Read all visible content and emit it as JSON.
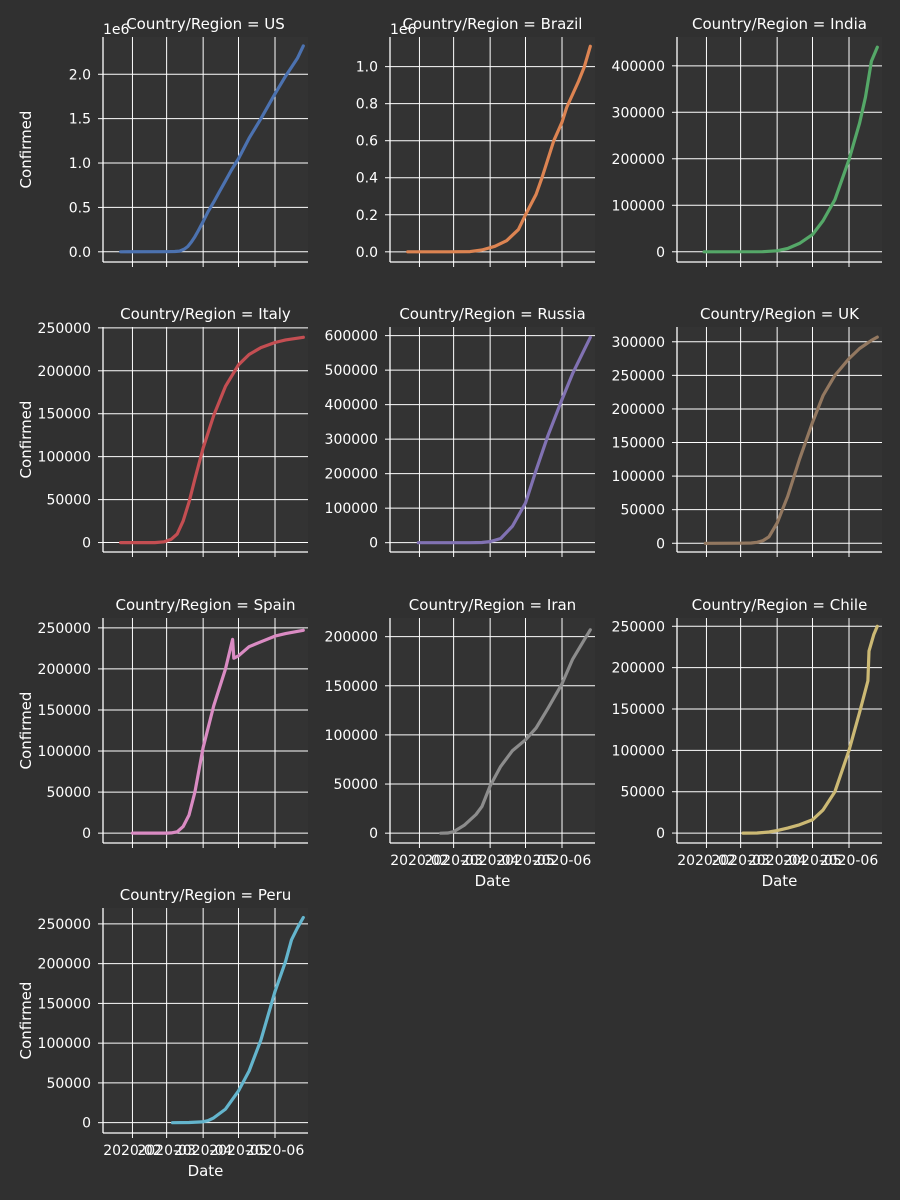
{
  "figure": {
    "background": "#303030",
    "panel_background": "#333333",
    "grid_color": "#ffffff",
    "text_color": "#ffffff",
    "col_wrap": 3
  },
  "chart_data": [
    {
      "type": "line",
      "title": "Country/Region = US",
      "xlabel": "",
      "ylabel": "Confirmed",
      "color": "#4c72b0",
      "xlim": [
        "2020-01-07",
        "2020-06-29"
      ],
      "ylim": [
        -115000,
        2420000
      ],
      "grid": true,
      "xticks": [
        "2020-02",
        "2020-03",
        "2020-04",
        "2020-05",
        "2020-06"
      ],
      "show_xticklabels": false,
      "yticks": [
        0,
        500000,
        1000000,
        1500000,
        2000000
      ],
      "ytick_labels": [
        "0.0",
        "0.5",
        "1.0",
        "1.5",
        "2.0"
      ],
      "offset_label": "1e6",
      "x": [
        "2020-01-22",
        "2020-03-01",
        "2020-03-08",
        "2020-03-12",
        "2020-03-16",
        "2020-03-19",
        "2020-03-22",
        "2020-03-25",
        "2020-03-28",
        "2020-04-01",
        "2020-04-05",
        "2020-04-10",
        "2020-04-15",
        "2020-04-20",
        "2020-04-25",
        "2020-05-01",
        "2020-05-10",
        "2020-05-20",
        "2020-06-01",
        "2020-06-10",
        "2020-06-15",
        "2020-06-20",
        "2020-06-25"
      ],
      "y": [
        0,
        500,
        3000,
        8000,
        30000,
        60000,
        110000,
        170000,
        240000,
        340000,
        450000,
        560000,
        680000,
        800000,
        920000,
        1050000,
        1280000,
        1500000,
        1780000,
        1980000,
        2080000,
        2180000,
        2320000
      ]
    },
    {
      "type": "line",
      "title": "Country/Region = Brazil",
      "xlabel": "",
      "ylabel": "",
      "color": "#dd8452",
      "xlim": [
        "2020-01-07",
        "2020-06-29"
      ],
      "ylim": [
        -55000,
        1160000
      ],
      "grid": true,
      "xticks": [
        "2020-02",
        "2020-03",
        "2020-04",
        "2020-05",
        "2020-06"
      ],
      "show_xticklabels": false,
      "yticks": [
        0,
        200000,
        400000,
        600000,
        800000,
        1000000
      ],
      "ytick_labels": [
        "0.0",
        "0.2",
        "0.4",
        "0.6",
        "0.8",
        "1.0"
      ],
      "offset_label": "1e6",
      "x": [
        "2020-01-22",
        "2020-02-26",
        "2020-03-15",
        "2020-03-25",
        "2020-04-05",
        "2020-04-15",
        "2020-04-25",
        "2020-05-01",
        "2020-05-10",
        "2020-05-15",
        "2020-05-20",
        "2020-05-25",
        "2020-06-01",
        "2020-06-05",
        "2020-06-10",
        "2020-06-15",
        "2020-06-20",
        "2020-06-25"
      ],
      "y": [
        0,
        1,
        1000,
        10000,
        30000,
        60000,
        120000,
        200000,
        310000,
        400000,
        500000,
        600000,
        700000,
        780000,
        850000,
        920000,
        1000000,
        1110000
      ]
    },
    {
      "type": "line",
      "title": "Country/Region = India",
      "xlabel": "",
      "ylabel": "",
      "color": "#55a868",
      "xlim": [
        "2020-01-07",
        "2020-06-29"
      ],
      "ylim": [
        -22000,
        462000
      ],
      "grid": true,
      "xticks": [
        "2020-02",
        "2020-03",
        "2020-04",
        "2020-05",
        "2020-06"
      ],
      "show_xticklabels": false,
      "yticks": [
        0,
        100000,
        200000,
        300000,
        400000
      ],
      "ytick_labels": [
        "0",
        "100000",
        "200000",
        "300000",
        "400000"
      ],
      "offset_label": "",
      "x": [
        "2020-01-30",
        "2020-03-20",
        "2020-04-01",
        "2020-04-10",
        "2020-04-20",
        "2020-05-01",
        "2020-05-10",
        "2020-05-20",
        "2020-06-01",
        "2020-06-10",
        "2020-06-15",
        "2020-06-20",
        "2020-06-25"
      ],
      "y": [
        1,
        200,
        2000,
        7000,
        18000,
        37000,
        67000,
        112000,
        198000,
        277000,
        333000,
        410000,
        440000
      ]
    },
    {
      "type": "line",
      "title": "Country/Region = Italy",
      "xlabel": "",
      "ylabel": "Confirmed",
      "color": "#c44e52",
      "xlim": [
        "2020-01-07",
        "2020-06-29"
      ],
      "ylim": [
        -11000,
        251000
      ],
      "grid": true,
      "xticks": [
        "2020-02",
        "2020-03",
        "2020-04",
        "2020-05",
        "2020-06"
      ],
      "show_xticklabels": false,
      "yticks": [
        0,
        50000,
        100000,
        150000,
        200000,
        250000
      ],
      "ytick_labels": [
        "0",
        "50000",
        "100000",
        "150000",
        "200000",
        "250000"
      ],
      "offset_label": "",
      "x": [
        "2020-01-22",
        "2020-02-20",
        "2020-02-28",
        "2020-03-05",
        "2020-03-10",
        "2020-03-15",
        "2020-03-20",
        "2020-03-25",
        "2020-04-01",
        "2020-04-10",
        "2020-04-20",
        "2020-05-01",
        "2020-05-10",
        "2020-05-20",
        "2020-06-01",
        "2020-06-10",
        "2020-06-25"
      ],
      "y": [
        0,
        3,
        900,
        3900,
        10000,
        25000,
        47000,
        74000,
        110000,
        148000,
        182000,
        207000,
        219000,
        227000,
        233000,
        236000,
        239000
      ]
    },
    {
      "type": "line",
      "title": "Country/Region = Russia",
      "xlabel": "",
      "ylabel": "",
      "color": "#8172b3",
      "xlim": [
        "2020-01-07",
        "2020-06-29"
      ],
      "ylim": [
        -27000,
        625000
      ],
      "grid": true,
      "xticks": [
        "2020-02",
        "2020-03",
        "2020-04",
        "2020-05",
        "2020-06"
      ],
      "show_xticklabels": false,
      "yticks": [
        0,
        100000,
        200000,
        300000,
        400000,
        500000,
        600000
      ],
      "ytick_labels": [
        "0",
        "100000",
        "200000",
        "300000",
        "400000",
        "500000",
        "600000"
      ],
      "offset_label": "",
      "x": [
        "2020-01-31",
        "2020-03-15",
        "2020-03-25",
        "2020-04-01",
        "2020-04-10",
        "2020-04-20",
        "2020-05-01",
        "2020-05-10",
        "2020-05-20",
        "2020-06-01",
        "2020-06-10",
        "2020-06-20",
        "2020-06-25"
      ],
      "y": [
        2,
        60,
        660,
        3000,
        12000,
        48000,
        115000,
        210000,
        310000,
        415000,
        490000,
        560000,
        595000
      ]
    },
    {
      "type": "line",
      "title": "Country/Region = UK",
      "xlabel": "",
      "ylabel": "",
      "color": "#937860",
      "xlim": [
        "2020-01-07",
        "2020-06-29"
      ],
      "ylim": [
        -13000,
        322000
      ],
      "grid": true,
      "xticks": [
        "2020-02",
        "2020-03",
        "2020-04",
        "2020-05",
        "2020-06"
      ],
      "show_xticklabels": false,
      "yticks": [
        0,
        50000,
        100000,
        150000,
        200000,
        250000,
        300000
      ],
      "ytick_labels": [
        "0",
        "50000",
        "100000",
        "150000",
        "200000",
        "250000",
        "300000"
      ],
      "offset_label": "",
      "x": [
        "2020-01-31",
        "2020-03-01",
        "2020-03-10",
        "2020-03-15",
        "2020-03-20",
        "2020-03-25",
        "2020-04-01",
        "2020-04-10",
        "2020-04-20",
        "2020-05-01",
        "2020-05-10",
        "2020-05-20",
        "2020-06-01",
        "2020-06-10",
        "2020-06-20",
        "2020-06-25"
      ],
      "y": [
        2,
        40,
        380,
        1400,
        4000,
        9500,
        30000,
        70000,
        125000,
        180000,
        220000,
        250000,
        275000,
        290000,
        302000,
        307000
      ]
    },
    {
      "type": "line",
      "title": "Country/Region = Spain",
      "xlabel": "",
      "ylabel": "Confirmed",
      "color": "#da8bc3",
      "xlim": [
        "2020-01-07",
        "2020-06-29"
      ],
      "ylim": [
        -12000,
        262000
      ],
      "grid": true,
      "xticks": [
        "2020-02",
        "2020-03",
        "2020-04",
        "2020-05",
        "2020-06"
      ],
      "show_xticklabels": false,
      "yticks": [
        0,
        50000,
        100000,
        150000,
        200000,
        250000
      ],
      "ytick_labels": [
        "0",
        "50000",
        "100000",
        "150000",
        "200000",
        "250000"
      ],
      "offset_label": "",
      "x": [
        "2020-02-01",
        "2020-03-01",
        "2020-03-05",
        "2020-03-10",
        "2020-03-15",
        "2020-03-20",
        "2020-03-25",
        "2020-04-01",
        "2020-04-10",
        "2020-04-20",
        "2020-04-26",
        "2020-04-27",
        "2020-05-01",
        "2020-05-10",
        "2020-05-20",
        "2020-06-01",
        "2020-06-10",
        "2020-06-25"
      ],
      "y": [
        1,
        80,
        280,
        1700,
        8000,
        22000,
        50000,
        104000,
        155000,
        200000,
        236000,
        213000,
        216000,
        227000,
        233000,
        240000,
        243000,
        247000
      ]
    },
    {
      "type": "line",
      "title": "Country/Region = Iran",
      "xlabel": "Date",
      "ylabel": "",
      "color": "#8c8c8c",
      "xlim": [
        "2020-01-07",
        "2020-06-29"
      ],
      "ylim": [
        -10000,
        219000
      ],
      "grid": true,
      "xticks": [
        "2020-02",
        "2020-03",
        "2020-04",
        "2020-05",
        "2020-06"
      ],
      "show_xticklabels": true,
      "xtick_labels": [
        "2020-02",
        "2020-03",
        "2020-04",
        "2020-05",
        "2020-06"
      ],
      "yticks": [
        0,
        50000,
        100000,
        150000,
        200000
      ],
      "ytick_labels": [
        "0",
        "50000",
        "100000",
        "150000",
        "200000"
      ],
      "offset_label": "",
      "x": [
        "2020-02-19",
        "2020-02-25",
        "2020-03-01",
        "2020-03-10",
        "2020-03-20",
        "2020-03-25",
        "2020-04-01",
        "2020-04-10",
        "2020-04-20",
        "2020-05-01",
        "2020-05-10",
        "2020-05-20",
        "2020-06-01",
        "2020-06-10",
        "2020-06-20",
        "2020-06-25"
      ],
      "y": [
        2,
        140,
        1500,
        8000,
        19000,
        27000,
        48000,
        68000,
        84000,
        95000,
        107000,
        127000,
        152000,
        177000,
        197000,
        207000
      ]
    },
    {
      "type": "line",
      "title": "Country/Region = Chile",
      "xlabel": "Date",
      "ylabel": "",
      "color": "#ccb974",
      "xlim": [
        "2020-01-07",
        "2020-06-29"
      ],
      "ylim": [
        -12000,
        260000
      ],
      "grid": true,
      "xticks": [
        "2020-02",
        "2020-03",
        "2020-04",
        "2020-05",
        "2020-06"
      ],
      "show_xticklabels": true,
      "xtick_labels": [
        "2020-02",
        "2020-03",
        "2020-04",
        "2020-05",
        "2020-06"
      ],
      "yticks": [
        0,
        50000,
        100000,
        150000,
        200000,
        250000
      ],
      "ytick_labels": [
        "0",
        "50000",
        "100000",
        "150000",
        "200000",
        "250000"
      ],
      "offset_label": "",
      "x": [
        "2020-03-03",
        "2020-03-15",
        "2020-03-25",
        "2020-04-01",
        "2020-04-10",
        "2020-04-20",
        "2020-05-01",
        "2020-05-10",
        "2020-05-20",
        "2020-06-01",
        "2020-06-10",
        "2020-06-17",
        "2020-06-18",
        "2020-06-22",
        "2020-06-25"
      ],
      "y": [
        1,
        100,
        1300,
        3000,
        6000,
        10000,
        16000,
        28000,
        50000,
        100000,
        146000,
        184000,
        220000,
        240000,
        250000
      ]
    },
    {
      "type": "line",
      "title": "Country/Region = Peru",
      "xlabel": "Date",
      "ylabel": "Confirmed",
      "color": "#64b5cd",
      "xlim": [
        "2020-01-07",
        "2020-06-29"
      ],
      "ylim": [
        -13000,
        270000
      ],
      "grid": true,
      "xticks": [
        "2020-02",
        "2020-03",
        "2020-04",
        "2020-05",
        "2020-06"
      ],
      "show_xticklabels": true,
      "xtick_labels": [
        "2020-02",
        "2020-03",
        "2020-04",
        "2020-05",
        "2020-06"
      ],
      "yticks": [
        0,
        50000,
        100000,
        150000,
        200000,
        250000
      ],
      "ytick_labels": [
        "0",
        "50000",
        "100000",
        "150000",
        "200000",
        "250000"
      ],
      "offset_label": "",
      "x": [
        "2020-03-06",
        "2020-03-20",
        "2020-03-31",
        "2020-04-05",
        "2020-04-10",
        "2020-04-20",
        "2020-05-01",
        "2020-05-10",
        "2020-05-20",
        "2020-06-01",
        "2020-06-10",
        "2020-06-15",
        "2020-06-20",
        "2020-06-25"
      ],
      "y": [
        1,
        230,
        1000,
        2500,
        6000,
        17000,
        40000,
        65000,
        104000,
        165000,
        203000,
        230000,
        245000,
        258000
      ]
    }
  ]
}
